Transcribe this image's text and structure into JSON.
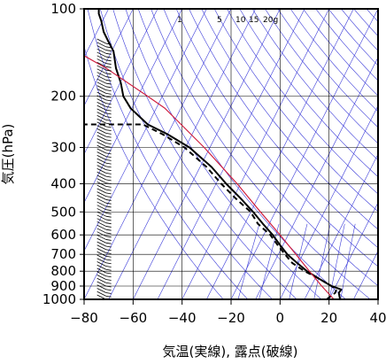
{
  "chart_data": {
    "type": "line",
    "title": "",
    "xlabel": "気温(実線), 露点(破線)",
    "ylabel": "気圧(hPa)",
    "xlim": [
      -80,
      40
    ],
    "ylim": [
      1000,
      100
    ],
    "y_scale": "log",
    "x_ticks": [
      "−80",
      "−60",
      "−40",
      "−20",
      "0",
      "20",
      "40"
    ],
    "y_ticks": [
      "100",
      "200",
      "300",
      "400",
      "500",
      "600",
      "700",
      "800",
      "900",
      "1000"
    ],
    "mixing_ratio_labels": [
      "1",
      "5",
      "10",
      "15",
      "20g"
    ],
    "grid": true,
    "background_lines": "skewed isotherms, dry/moist adiabats and mixing-ratio lines (blue)",
    "series": [
      {
        "role": "temperature",
        "line": "solid",
        "color": "#000000",
        "points": [
          [
            24.5,
            1000
          ],
          [
            24,
            950
          ],
          [
            25,
            925
          ],
          [
            21,
            900
          ],
          [
            16,
            850
          ],
          [
            11,
            800
          ],
          [
            7,
            750
          ],
          [
            3,
            700
          ],
          [
            0,
            650
          ],
          [
            -3,
            600
          ],
          [
            -7,
            550
          ],
          [
            -11,
            500
          ],
          [
            -16,
            450
          ],
          [
            -22,
            400
          ],
          [
            -28,
            350
          ],
          [
            -37,
            300
          ],
          [
            -46,
            270
          ],
          [
            -54,
            250
          ],
          [
            -61,
            220
          ],
          [
            -64,
            200
          ],
          [
            -65,
            180
          ],
          [
            -67,
            160
          ],
          [
            -68,
            140
          ],
          [
            -70,
            130
          ],
          [
            -72,
            120
          ],
          [
            -73,
            110
          ],
          [
            -74,
            104
          ],
          [
            -74,
            100
          ]
        ]
      },
      {
        "role": "dewpoint",
        "line": "dashed",
        "color": "#000000",
        "points": [
          [
            19,
            1000
          ],
          [
            22.5,
            950
          ],
          [
            23,
            925
          ],
          [
            21,
            900
          ],
          [
            16,
            850
          ],
          [
            10,
            800
          ],
          [
            5,
            750
          ],
          [
            2,
            700
          ],
          [
            -1,
            650
          ],
          [
            -4,
            600
          ],
          [
            -9,
            550
          ],
          [
            -12,
            500
          ],
          [
            -18,
            450
          ],
          [
            -24,
            400
          ],
          [
            -30,
            350
          ],
          [
            -39,
            300
          ],
          [
            -48,
            270
          ],
          [
            -56,
            250
          ],
          [
            -80,
            250
          ]
        ]
      },
      {
        "role": "reference",
        "line": "solid",
        "color": "#d02040",
        "points": [
          [
            22,
            1000
          ],
          [
            17,
            900
          ],
          [
            12,
            800
          ],
          [
            6.5,
            700
          ],
          [
            0,
            600
          ],
          [
            -8,
            500
          ],
          [
            -17.5,
            400
          ],
          [
            -31,
            300
          ],
          [
            -47,
            220
          ],
          [
            -54,
            200
          ],
          [
            -71,
            160
          ],
          [
            -80,
            145
          ]
        ]
      }
    ],
    "wind_barbs": {
      "x_position": "-70",
      "color": "#000000",
      "note": "column of wind barbs along the left side"
    }
  }
}
